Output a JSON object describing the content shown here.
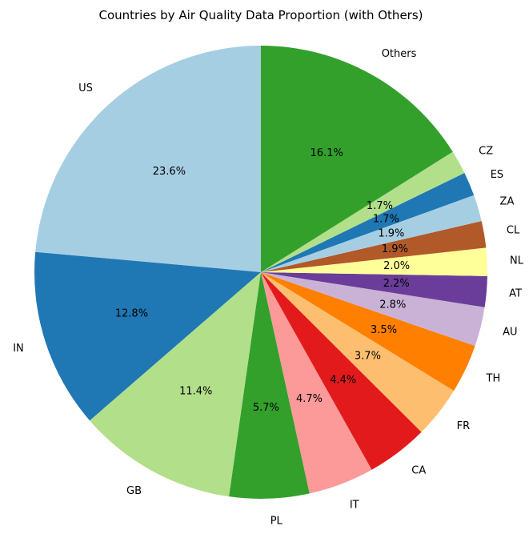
{
  "chart_data": {
    "type": "pie",
    "title": "Countries by Air Quality Data Proportion (with Others)",
    "start_angle_deg": 90,
    "direction": "counterclockwise",
    "slices": [
      {
        "label": "US",
        "value": 23.6,
        "pct_label": "23.6%",
        "color": "#a6cee3"
      },
      {
        "label": "IN",
        "value": 12.8,
        "pct_label": "12.8%",
        "color": "#1f78b4"
      },
      {
        "label": "GB",
        "value": 11.4,
        "pct_label": "11.4%",
        "color": "#b2df8a"
      },
      {
        "label": "PL",
        "value": 5.7,
        "pct_label": "5.7%",
        "color": "#33a02c"
      },
      {
        "label": "IT",
        "value": 4.7,
        "pct_label": "4.7%",
        "color": "#fb9a99"
      },
      {
        "label": "CA",
        "value": 4.4,
        "pct_label": "4.4%",
        "color": "#e31a1c"
      },
      {
        "label": "FR",
        "value": 3.7,
        "pct_label": "3.7%",
        "color": "#fdbf6f"
      },
      {
        "label": "TH",
        "value": 3.5,
        "pct_label": "3.5%",
        "color": "#ff7f00"
      },
      {
        "label": "AU",
        "value": 2.8,
        "pct_label": "2.8%",
        "color": "#cab2d6"
      },
      {
        "label": "AT",
        "value": 2.2,
        "pct_label": "2.2%",
        "color": "#6a3d9a"
      },
      {
        "label": "NL",
        "value": 2.0,
        "pct_label": "2.0%",
        "color": "#ffff99"
      },
      {
        "label": "CL",
        "value": 1.9,
        "pct_label": "1.9%",
        "color": "#b15928"
      },
      {
        "label": "ZA",
        "value": 1.9,
        "pct_label": "1.9%",
        "color": "#a6cee3"
      },
      {
        "label": "ES",
        "value": 1.7,
        "pct_label": "1.7%",
        "color": "#1f78b4"
      },
      {
        "label": "CZ",
        "value": 1.7,
        "pct_label": "1.7%",
        "color": "#b2df8a"
      },
      {
        "label": "Others",
        "value": 16.1,
        "pct_label": "16.1%",
        "color": "#33a02c"
      }
    ]
  }
}
